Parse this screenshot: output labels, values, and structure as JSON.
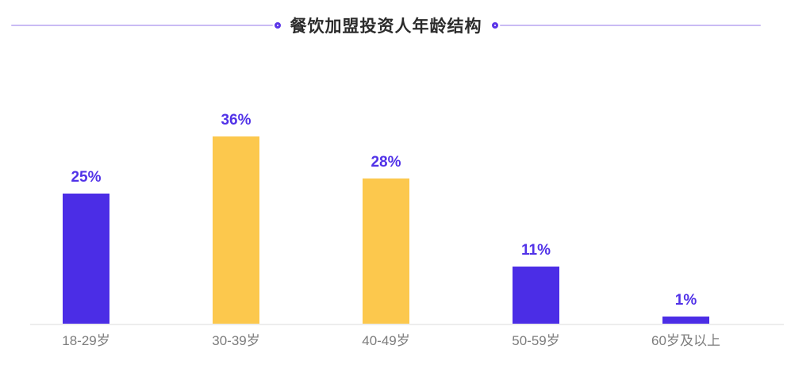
{
  "title": {
    "text": "餐饮加盟投资人年龄结构"
  },
  "chart_data": {
    "type": "bar",
    "title": "餐饮加盟投资人年龄结构",
    "categories": [
      "18-29岁",
      "30-39岁",
      "40-49岁",
      "50-59岁",
      "60岁及以上"
    ],
    "values": [
      25,
      36,
      28,
      11,
      1
    ],
    "value_labels": [
      "25%",
      "36%",
      "28%",
      "11%",
      "1%"
    ],
    "bar_colors": [
      "#4b2de6",
      "#fcc84d",
      "#fcc84d",
      "#4b2de6",
      "#4b2de6"
    ],
    "xlabel": "",
    "ylabel": "",
    "ylim": [
      0,
      40
    ],
    "grid": false,
    "legend": false,
    "y_axis_visible": false
  },
  "colors": {
    "bar_purple": "#4b2de6",
    "bar_yellow": "#fcc84d",
    "value_label": "#5132e8",
    "category_label": "#7d7d7d",
    "axis_line": "#ededed",
    "title_text": "#2b2b2b",
    "deco_line": "#c9bbf4",
    "deco_ring": "#5b35e8"
  }
}
